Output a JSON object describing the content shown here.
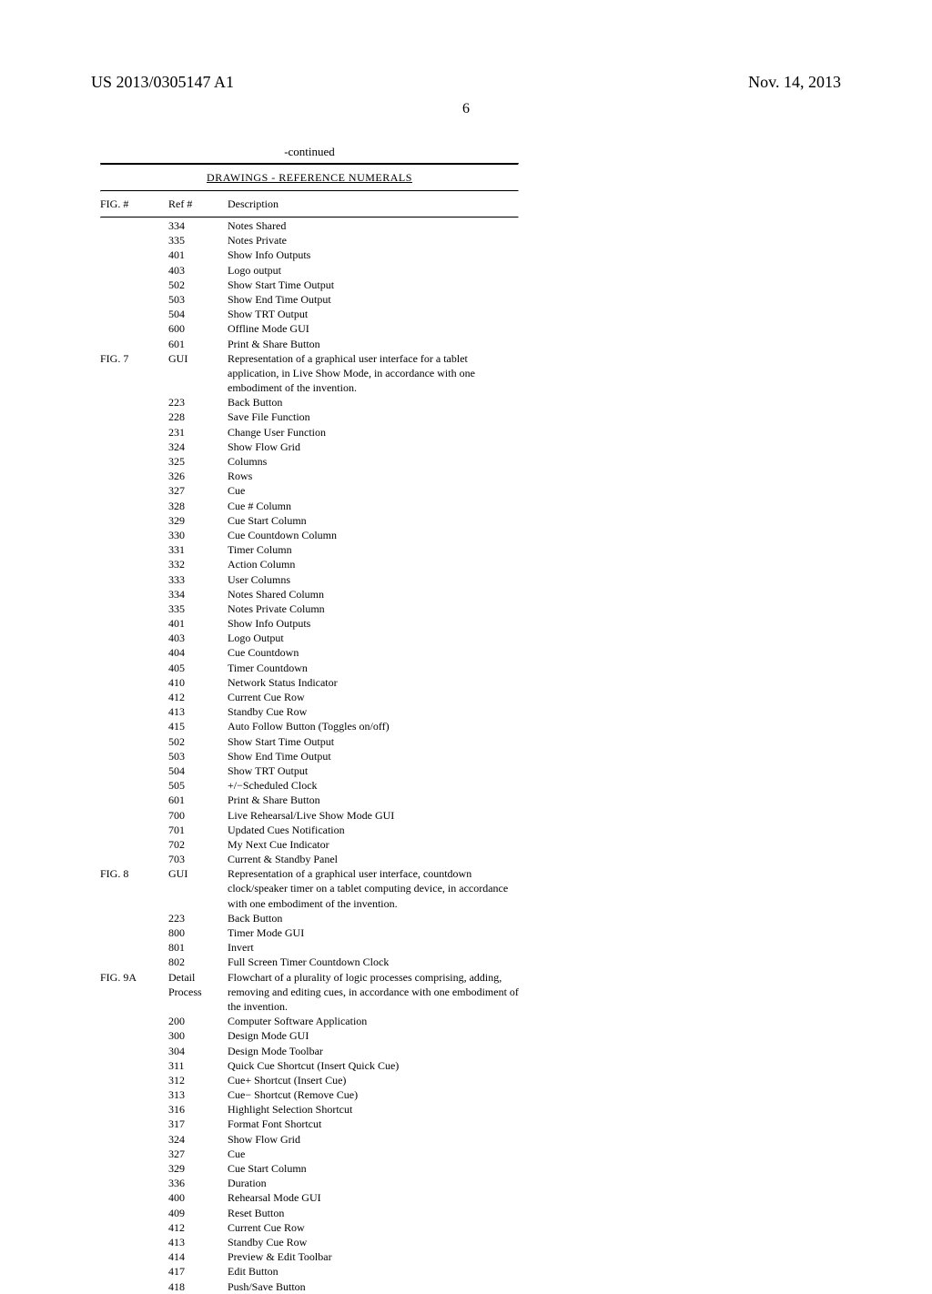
{
  "header": {
    "pub_number": "US 2013/0305147 A1",
    "pub_date": "Nov. 14, 2013"
  },
  "page_number": "6",
  "continued_label": "-continued",
  "section_title": "DRAWINGS - REFERENCE NUMERALS",
  "columns": {
    "fig": "FIG. #",
    "ref": "Ref #",
    "desc": "Description"
  },
  "rows": [
    {
      "fig": "",
      "ref": "334",
      "desc": "Notes Shared"
    },
    {
      "fig": "",
      "ref": "335",
      "desc": "Notes Private"
    },
    {
      "fig": "",
      "ref": "401",
      "desc": "Show Info Outputs"
    },
    {
      "fig": "",
      "ref": "403",
      "desc": "Logo output"
    },
    {
      "fig": "",
      "ref": "502",
      "desc": "Show Start Time Output"
    },
    {
      "fig": "",
      "ref": "503",
      "desc": "Show End Time Output"
    },
    {
      "fig": "",
      "ref": "504",
      "desc": "Show TRT Output"
    },
    {
      "fig": "",
      "ref": "600",
      "desc": "Offline Mode GUI"
    },
    {
      "fig": "",
      "ref": "601",
      "desc": "Print & Share Button"
    },
    {
      "fig": "FIG. 7",
      "ref": "GUI",
      "desc": "Representation of a graphical user interface for a tablet application, in Live Show Mode, in accordance with one embodiment of the invention."
    },
    {
      "fig": "",
      "ref": "223",
      "desc": "Back Button"
    },
    {
      "fig": "",
      "ref": "228",
      "desc": "Save File Function"
    },
    {
      "fig": "",
      "ref": "231",
      "desc": "Change User Function"
    },
    {
      "fig": "",
      "ref": "324",
      "desc": "Show Flow Grid"
    },
    {
      "fig": "",
      "ref": "325",
      "desc": "Columns"
    },
    {
      "fig": "",
      "ref": "326",
      "desc": "Rows"
    },
    {
      "fig": "",
      "ref": "327",
      "desc": "Cue"
    },
    {
      "fig": "",
      "ref": "328",
      "desc": "Cue # Column"
    },
    {
      "fig": "",
      "ref": "329",
      "desc": "Cue Start Column"
    },
    {
      "fig": "",
      "ref": "330",
      "desc": "Cue Countdown Column"
    },
    {
      "fig": "",
      "ref": "331",
      "desc": "Timer Column"
    },
    {
      "fig": "",
      "ref": "332",
      "desc": "Action Column"
    },
    {
      "fig": "",
      "ref": "333",
      "desc": "User Columns"
    },
    {
      "fig": "",
      "ref": "334",
      "desc": "Notes Shared Column"
    },
    {
      "fig": "",
      "ref": "335",
      "desc": "Notes Private Column"
    },
    {
      "fig": "",
      "ref": "401",
      "desc": "Show Info Outputs"
    },
    {
      "fig": "",
      "ref": "403",
      "desc": "Logo Output"
    },
    {
      "fig": "",
      "ref": "404",
      "desc": "Cue Countdown"
    },
    {
      "fig": "",
      "ref": "405",
      "desc": "Timer Countdown"
    },
    {
      "fig": "",
      "ref": "410",
      "desc": "Network Status Indicator"
    },
    {
      "fig": "",
      "ref": "412",
      "desc": "Current Cue Row"
    },
    {
      "fig": "",
      "ref": "413",
      "desc": "Standby Cue Row"
    },
    {
      "fig": "",
      "ref": "415",
      "desc": "Auto Follow Button (Toggles on/off)"
    },
    {
      "fig": "",
      "ref": "502",
      "desc": "Show Start Time Output"
    },
    {
      "fig": "",
      "ref": "503",
      "desc": "Show End Time Output"
    },
    {
      "fig": "",
      "ref": "504",
      "desc": "Show TRT Output"
    },
    {
      "fig": "",
      "ref": "505",
      "desc": "+/−Scheduled Clock"
    },
    {
      "fig": "",
      "ref": "601",
      "desc": "Print & Share Button"
    },
    {
      "fig": "",
      "ref": "700",
      "desc": "Live Rehearsal/Live Show Mode GUI"
    },
    {
      "fig": "",
      "ref": "701",
      "desc": "Updated Cues Notification"
    },
    {
      "fig": "",
      "ref": "702",
      "desc": "My Next Cue Indicator"
    },
    {
      "fig": "",
      "ref": "703",
      "desc": "Current & Standby Panel"
    },
    {
      "fig": "FIG. 8",
      "ref": "GUI",
      "desc": "Representation of a graphical user interface, countdown clock/speaker timer on a tablet computing device, in accordance with one embodiment of the invention."
    },
    {
      "fig": "",
      "ref": "223",
      "desc": "Back Button"
    },
    {
      "fig": "",
      "ref": "800",
      "desc": "Timer Mode GUI"
    },
    {
      "fig": "",
      "ref": "801",
      "desc": "Invert"
    },
    {
      "fig": "",
      "ref": "802",
      "desc": "Full Screen Timer Countdown Clock"
    },
    {
      "fig": "FIG. 9A",
      "ref": "Detail Process",
      "desc": "Flowchart of a plurality of logic processes comprising, adding, removing and editing cues, in accordance with one embodiment of the invention."
    },
    {
      "fig": "",
      "ref": "200",
      "desc": "Computer Software Application"
    },
    {
      "fig": "",
      "ref": "300",
      "desc": "Design Mode GUI"
    },
    {
      "fig": "",
      "ref": "304",
      "desc": "Design Mode Toolbar"
    },
    {
      "fig": "",
      "ref": "311",
      "desc": "Quick Cue Shortcut (Insert Quick Cue)"
    },
    {
      "fig": "",
      "ref": "312",
      "desc": "Cue+ Shortcut (Insert Cue)"
    },
    {
      "fig": "",
      "ref": "313",
      "desc": "Cue− Shortcut (Remove Cue)"
    },
    {
      "fig": "",
      "ref": "316",
      "desc": "Highlight Selection Shortcut"
    },
    {
      "fig": "",
      "ref": "317",
      "desc": "Format Font Shortcut"
    },
    {
      "fig": "",
      "ref": "324",
      "desc": "Show Flow Grid"
    },
    {
      "fig": "",
      "ref": "327",
      "desc": "Cue"
    },
    {
      "fig": "",
      "ref": "329",
      "desc": "Cue Start Column"
    },
    {
      "fig": "",
      "ref": "336",
      "desc": "Duration"
    },
    {
      "fig": "",
      "ref": "400",
      "desc": "Rehearsal Mode GUI"
    },
    {
      "fig": "",
      "ref": "409",
      "desc": "Reset Button"
    },
    {
      "fig": "",
      "ref": "412",
      "desc": "Current Cue Row"
    },
    {
      "fig": "",
      "ref": "413",
      "desc": "Standby Cue Row"
    },
    {
      "fig": "",
      "ref": "414",
      "desc": "Preview & Edit Toolbar"
    },
    {
      "fig": "",
      "ref": "417",
      "desc": "Edit Button"
    },
    {
      "fig": "",
      "ref": "418",
      "desc": "Push/Save Button"
    }
  ]
}
